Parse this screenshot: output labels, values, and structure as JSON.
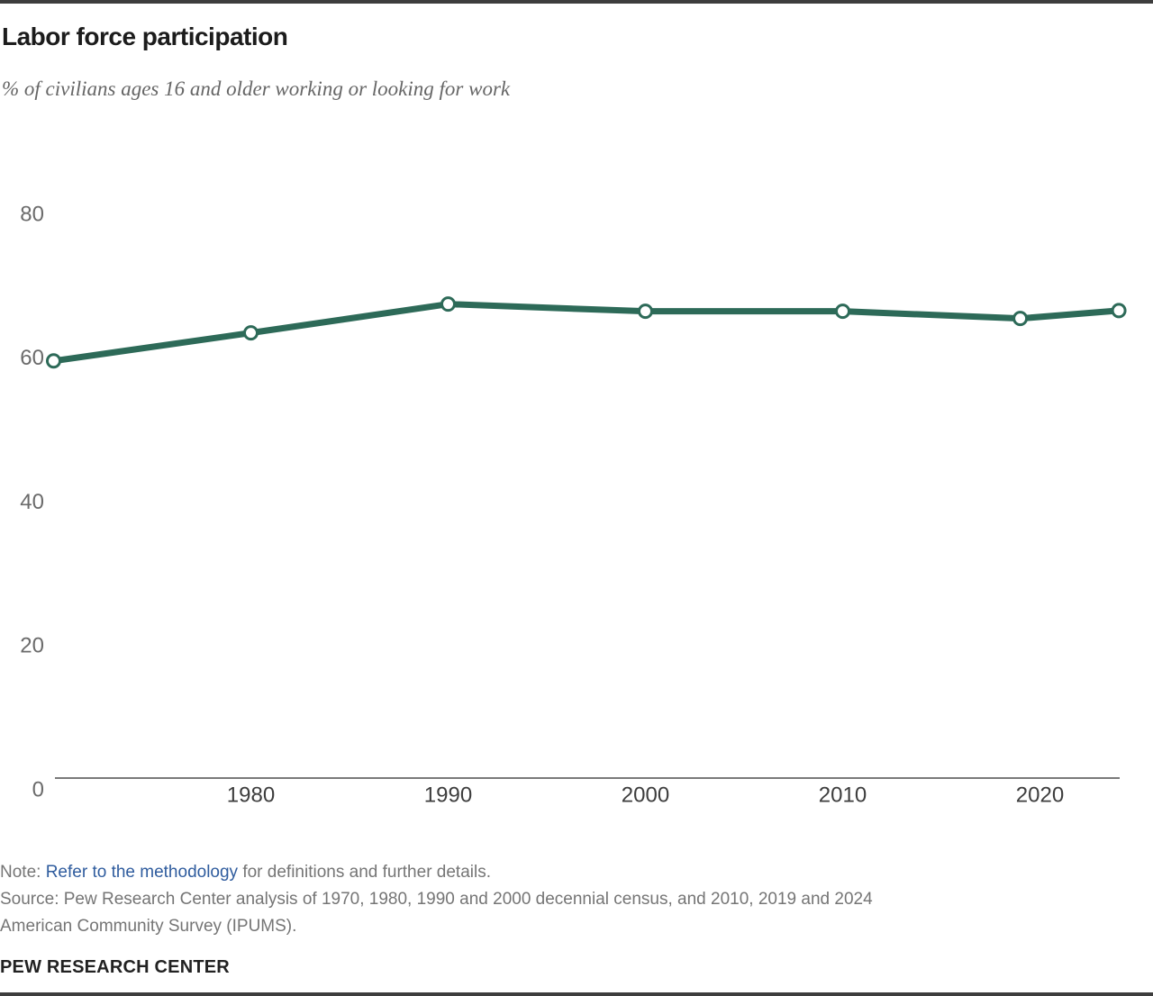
{
  "header": {
    "title": "Labor force participation",
    "subtitle": "% of civilians ages 16 and older working or looking for work"
  },
  "chart_data": {
    "type": "line",
    "title": "Labor force participation",
    "subtitle": "% of civilians ages 16 and older working or looking for work",
    "x": [
      1970,
      1980,
      1990,
      2000,
      2010,
      2019,
      2024
    ],
    "series": [
      {
        "name": "Labor force participation rate",
        "values": [
          59.6,
          63.5,
          67.5,
          66.5,
          66.5,
          65.5,
          66.6
        ],
        "color": "#2D6A58",
        "marker": "open-circle"
      }
    ],
    "xlim": [
      1970,
      2024
    ],
    "ylim": [
      0,
      90
    ],
    "x_ticks": [
      1980,
      1990,
      2000,
      2010,
      2020
    ],
    "y_ticks": [
      0,
      20,
      40,
      60,
      80
    ],
    "grid": false,
    "legend": "none",
    "xlabel": "",
    "ylabel": ""
  },
  "footer": {
    "note_prefix": "Note: ",
    "note_link": "Refer to the methodology",
    "note_suffix": " for definitions and further details.",
    "source": "Source: Pew Research Center analysis of 1970, 1980, 1990 and 2000 decennial census, and 2010, 2019 and 2024\nAmerican Community Survey (IPUMS).",
    "brand": "PEW RESEARCH CENTER"
  },
  "colors": {
    "line": "#2D6A58",
    "link": "#2F5C9E",
    "axis_line": "#7a7a7a",
    "y_tick_label": "#6b6b6b",
    "x_tick_label": "#3d3d3d",
    "page_border": "#3d3d3d",
    "title_text": "#1c1c1c",
    "muted_text": "#757575"
  }
}
